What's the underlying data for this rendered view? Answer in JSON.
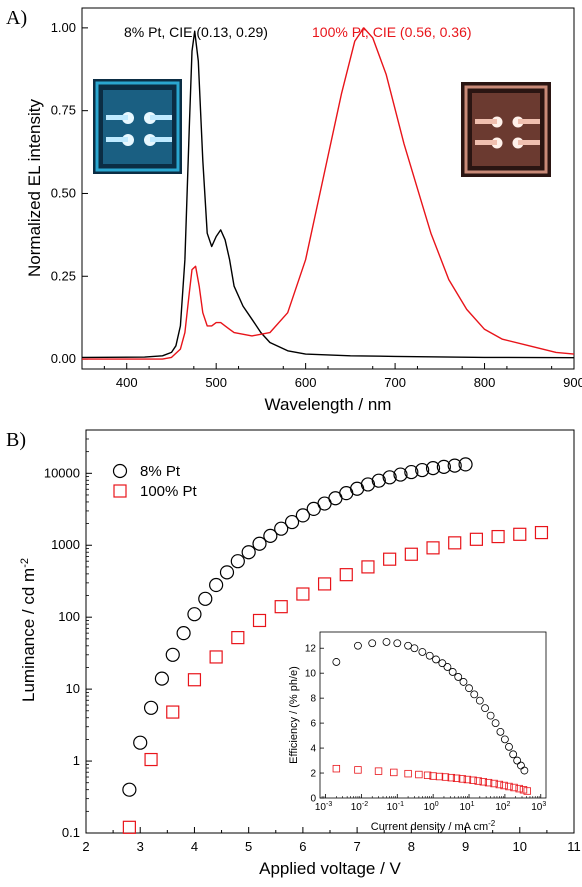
{
  "chart_data": [
    {
      "type": "line",
      "panel_label": "A)",
      "xlabel": "Wavelength / nm",
      "ylabel": "Normalized EL intensity",
      "xlim": [
        350,
        900
      ],
      "ylim": [
        -0.03,
        1.06
      ],
      "xticks": [
        "400",
        "500",
        "600",
        "700",
        "800",
        "900"
      ],
      "yticks": [
        "0.00",
        "0.25",
        "0.50",
        "0.75",
        "1.00"
      ],
      "annotations": [
        "8% Pt, CIE (0.13, 0.29)",
        "100% Pt, CIE (0.56, 0.36)"
      ],
      "series": [
        {
          "color": "#000000",
          "x": [
            350,
            420,
            440,
            450,
            455,
            460,
            465,
            470,
            473,
            476,
            480,
            485,
            490,
            495,
            500,
            505,
            510,
            515,
            520,
            530,
            540,
            550,
            560,
            580,
            600,
            650,
            700,
            800,
            900
          ],
          "y": [
            0.005,
            0.006,
            0.01,
            0.02,
            0.04,
            0.1,
            0.3,
            0.7,
            0.93,
            0.99,
            0.9,
            0.6,
            0.38,
            0.34,
            0.37,
            0.39,
            0.36,
            0.3,
            0.22,
            0.16,
            0.12,
            0.08,
            0.05,
            0.025,
            0.015,
            0.01,
            0.008,
            0.005,
            0.004
          ]
        },
        {
          "color": "#e8141a",
          "x": [
            350,
            440,
            450,
            460,
            465,
            470,
            473,
            477,
            481,
            485,
            490,
            495,
            500,
            505,
            510,
            515,
            520,
            540,
            560,
            580,
            600,
            620,
            640,
            655,
            665,
            675,
            690,
            710,
            730,
            740,
            760,
            780,
            800,
            820,
            850,
            880,
            900
          ],
          "y": [
            0.0,
            0.0,
            0.005,
            0.03,
            0.08,
            0.2,
            0.27,
            0.28,
            0.22,
            0.14,
            0.1,
            0.1,
            0.11,
            0.11,
            0.1,
            0.09,
            0.08,
            0.07,
            0.08,
            0.14,
            0.3,
            0.55,
            0.8,
            0.96,
            1.0,
            0.97,
            0.86,
            0.65,
            0.47,
            0.38,
            0.24,
            0.15,
            0.09,
            0.06,
            0.04,
            0.02,
            0.015
          ]
        }
      ]
    },
    {
      "type": "scatter",
      "panel_label": "B)",
      "xlabel": "Applied voltage / V",
      "ylabel": "Luminance / cd m",
      "ylabel_sup": "-2",
      "xlim": [
        2,
        11
      ],
      "ylim": [
        0.1,
        40000
      ],
      "yscale": "log",
      "xticks": [
        "2",
        "3",
        "4",
        "5",
        "6",
        "7",
        "8",
        "9",
        "10",
        "11"
      ],
      "yticks": [
        "0.1",
        "1",
        "10",
        "100",
        "1000",
        "10000"
      ],
      "legend_placement": "top-left",
      "series": [
        {
          "name": "8% Pt",
          "marker": "circle",
          "color": "#000000",
          "x": [
            2.8,
            3.0,
            3.2,
            3.4,
            3.6,
            3.8,
            4.0,
            4.2,
            4.4,
            4.6,
            4.8,
            5.0,
            5.2,
            5.4,
            5.6,
            5.8,
            6.0,
            6.2,
            6.4,
            6.6,
            6.8,
            7.0,
            7.2,
            7.4,
            7.6,
            7.8,
            8.0,
            8.2,
            8.4,
            8.6,
            8.8,
            9.0
          ],
          "y": [
            0.4,
            1.8,
            5.5,
            14,
            30,
            60,
            110,
            180,
            280,
            420,
            600,
            800,
            1050,
            1350,
            1700,
            2100,
            2600,
            3200,
            3800,
            4500,
            5300,
            6100,
            7000,
            7900,
            8800,
            9600,
            10400,
            11100,
            11800,
            12300,
            12800,
            13300
          ]
        },
        {
          "name": "100% Pt",
          "marker": "square",
          "color": "#e8141a",
          "x": [
            2.8,
            3.2,
            3.6,
            4.0,
            4.4,
            4.8,
            5.2,
            5.6,
            6.0,
            6.4,
            6.8,
            7.2,
            7.6,
            8.0,
            8.4,
            8.8,
            9.2,
            9.6,
            10.0,
            10.4
          ],
          "y": [
            0.12,
            1.05,
            4.8,
            13.5,
            28,
            52,
            90,
            140,
            210,
            290,
            390,
            500,
            640,
            750,
            920,
            1080,
            1210,
            1320,
            1420,
            1500
          ]
        }
      ]
    },
    {
      "type": "scatter",
      "inset": true,
      "xlabel": "Current density / mA cm",
      "xlabel_sup": "-2",
      "ylabel": "Efficiency / (% ph/e)",
      "xscale": "log",
      "xlim": [
        0.0007,
        1400
      ],
      "ylim": [
        0,
        13.3
      ],
      "xticks_exp": [
        "-3",
        "-2",
        "-1",
        "0",
        "1",
        "2",
        "3"
      ],
      "yticks": [
        "0",
        "2",
        "4",
        "6",
        "8",
        "10",
        "12"
      ],
      "series": [
        {
          "marker": "circle",
          "color": "#000000",
          "x": [
            0.002,
            0.008,
            0.02,
            0.05,
            0.1,
            0.2,
            0.3,
            0.5,
            0.8,
            1.2,
            1.8,
            2.5,
            3.5,
            5,
            7,
            10,
            14,
            20,
            28,
            40,
            55,
            75,
            100,
            130,
            170,
            220,
            280,
            350
          ],
          "y": [
            10.9,
            12.2,
            12.4,
            12.5,
            12.4,
            12.2,
            12.0,
            11.7,
            11.4,
            11.1,
            10.8,
            10.5,
            10.1,
            9.7,
            9.3,
            8.8,
            8.3,
            7.8,
            7.2,
            6.6,
            6.0,
            5.3,
            4.7,
            4.1,
            3.5,
            3.0,
            2.6,
            2.2
          ]
        },
        {
          "marker": "square",
          "color": "#e8141a",
          "x": [
            0.002,
            0.008,
            0.03,
            0.08,
            0.2,
            0.4,
            0.7,
            1.0,
            1.5,
            2.2,
            3.2,
            4.5,
            6.5,
            9,
            13,
            18,
            25,
            35,
            50,
            70,
            95,
            130,
            180,
            250,
            330,
            420
          ],
          "y": [
            2.35,
            2.25,
            2.15,
            2.05,
            1.95,
            1.88,
            1.82,
            1.76,
            1.72,
            1.68,
            1.63,
            1.58,
            1.53,
            1.48,
            1.42,
            1.36,
            1.3,
            1.23,
            1.16,
            1.08,
            1.0,
            0.92,
            0.84,
            0.75,
            0.66,
            0.56
          ]
        }
      ]
    }
  ],
  "photos": [
    {
      "name": "blue-device-photo",
      "color": "#2aa6d0",
      "bg": "#0b2d44"
    },
    {
      "name": "red-device-photo",
      "color": "#e8a08a",
      "bg": "#2a1512"
    }
  ]
}
